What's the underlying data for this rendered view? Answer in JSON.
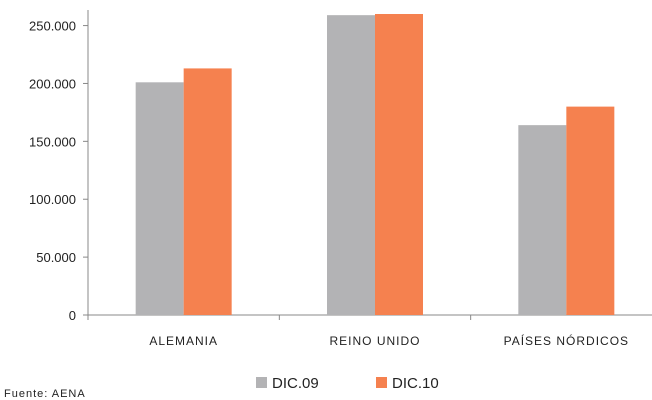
{
  "chart_data": {
    "type": "bar",
    "title": "",
    "xlabel": "",
    "ylabel": "",
    "categories": [
      "ALEMANIA",
      "REINO UNIDO",
      "PAÍSES NÓRDICOS"
    ],
    "series": [
      {
        "name": "DIC.09",
        "color": "#b3b3b5",
        "values": [
          201000,
          259000,
          164000
        ]
      },
      {
        "name": "DIC.10",
        "color": "#f5814f",
        "values": [
          213000,
          260000,
          180000
        ]
      }
    ],
    "ylim": [
      0,
      260000
    ],
    "yticks": [
      0,
      50000,
      100000,
      150000,
      200000,
      250000
    ],
    "ytick_labels": [
      "0",
      "50.000",
      "100.000",
      "150.000",
      "200.000",
      "250.000"
    ],
    "grid": false,
    "legend_position": "bottom"
  },
  "source_note": "Fuente: AENA"
}
